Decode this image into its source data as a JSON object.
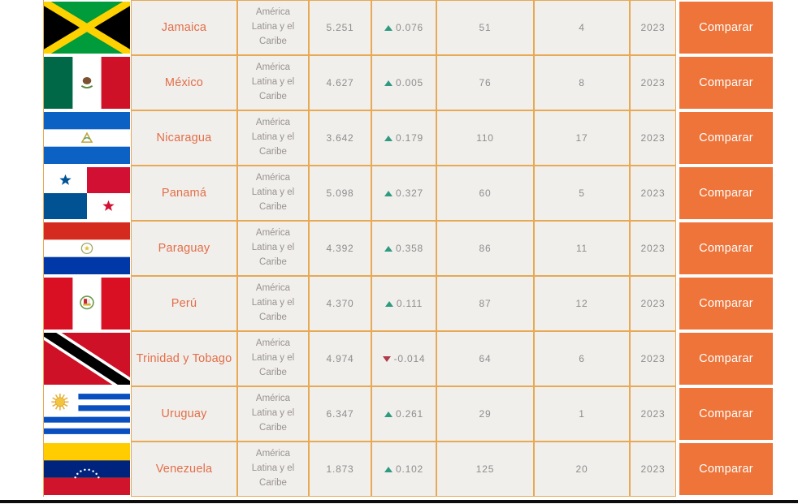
{
  "colors": {
    "border": "#e7a954",
    "cell_bg": "#f1efec",
    "country_text": "#e26e48",
    "muted_text": "#979390",
    "button_bg": "#ee7439",
    "button_text": "#ffffff",
    "trend_up": "#2e9b80",
    "trend_down": "#b03a4a",
    "bottom_bar": "#0d0d0d"
  },
  "table": {
    "compare_label": "Comparar",
    "rows": [
      {
        "flag": "jamaica",
        "country": "Jamaica",
        "region": "América Latina y el Caribe",
        "score": "5.251",
        "change": "0.076",
        "trend": "up",
        "rank": "51",
        "regional_rank": "4",
        "year": "2023"
      },
      {
        "flag": "mexico",
        "country": "México",
        "region": "América Latina y el Caribe",
        "score": "4.627",
        "change": "0.005",
        "trend": "up",
        "rank": "76",
        "regional_rank": "8",
        "year": "2023"
      },
      {
        "flag": "nicaragua",
        "country": "Nicaragua",
        "region": "América Latina y el Caribe",
        "score": "3.642",
        "change": "0.179",
        "trend": "up",
        "rank": "110",
        "regional_rank": "17",
        "year": "2023"
      },
      {
        "flag": "panama",
        "country": "Panamá",
        "region": "América Latina y el Caribe",
        "score": "5.098",
        "change": "0.327",
        "trend": "up",
        "rank": "60",
        "regional_rank": "5",
        "year": "2023"
      },
      {
        "flag": "paraguay",
        "country": "Paraguay",
        "region": "América Latina y el Caribe",
        "score": "4.392",
        "change": "0.358",
        "trend": "up",
        "rank": "86",
        "regional_rank": "11",
        "year": "2023"
      },
      {
        "flag": "peru",
        "country": "Perú",
        "region": "América Latina y el Caribe",
        "score": "4.370",
        "change": "0.111",
        "trend": "up",
        "rank": "87",
        "regional_rank": "12",
        "year": "2023"
      },
      {
        "flag": "trinidad",
        "country": "Trinidad y Tobago",
        "region": "América Latina y el Caribe",
        "score": "4.974",
        "change": "-0.014",
        "trend": "down",
        "rank": "64",
        "regional_rank": "6",
        "year": "2023"
      },
      {
        "flag": "uruguay",
        "country": "Uruguay",
        "region": "América Latina y el Caribe",
        "score": "6.347",
        "change": "0.261",
        "trend": "up",
        "rank": "29",
        "regional_rank": "1",
        "year": "2023"
      },
      {
        "flag": "venezuela",
        "country": "Venezuela",
        "region": "América Latina y el Caribe",
        "score": "1.873",
        "change": "0.102",
        "trend": "up",
        "rank": "125",
        "regional_rank": "20",
        "year": "2023"
      }
    ]
  }
}
